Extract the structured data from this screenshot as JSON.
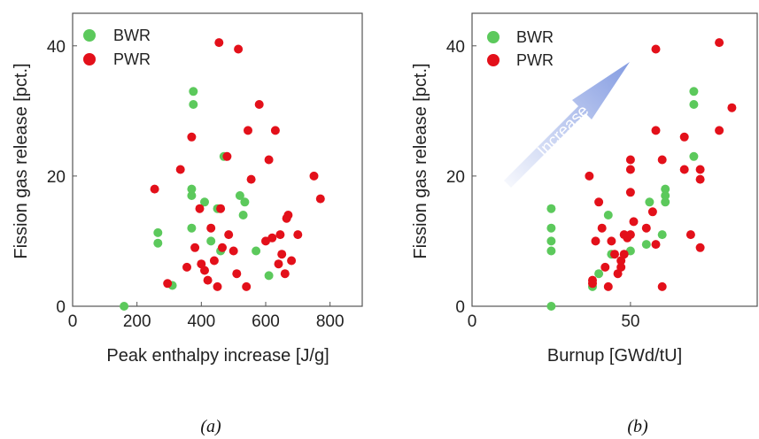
{
  "captions": [
    "(a)",
    "(b)"
  ],
  "colors": {
    "BWR": "#5cc95c",
    "PWR": "#e3101a",
    "arrow": "#7e97e0"
  },
  "chart_data": [
    {
      "type": "scatter",
      "title": "",
      "xlabel": "Peak enthalpy increase [J/g]",
      "ylabel": "Fission gas release [pct.]",
      "xlim": [
        0,
        900
      ],
      "ylim": [
        0,
        45
      ],
      "xticks": [
        0,
        200,
        400,
        600,
        800
      ],
      "yticks": [
        0,
        20,
        40
      ],
      "legend": "top-left",
      "series": [
        {
          "name": "BWR",
          "points": [
            [
              160,
              0
            ],
            [
              265,
              9.7
            ],
            [
              265,
              11.3
            ],
            [
              310,
              3.2
            ],
            [
              370,
              17
            ],
            [
              370,
              18
            ],
            [
              370,
              12
            ],
            [
              375,
              31
            ],
            [
              375,
              33
            ],
            [
              410,
              16
            ],
            [
              430,
              10
            ],
            [
              450,
              15
            ],
            [
              460,
              8.5
            ],
            [
              470,
              23
            ],
            [
              520,
              17
            ],
            [
              530,
              14
            ],
            [
              535,
              16
            ],
            [
              570,
              8.5
            ],
            [
              610,
              4.7
            ]
          ]
        },
        {
          "name": "PWR",
          "points": [
            [
              255,
              18
            ],
            [
              295,
              3.5
            ],
            [
              335,
              21
            ],
            [
              355,
              6
            ],
            [
              370,
              26
            ],
            [
              380,
              9
            ],
            [
              395,
              15
            ],
            [
              400,
              6.5
            ],
            [
              410,
              5.5
            ],
            [
              420,
              4
            ],
            [
              430,
              12
            ],
            [
              440,
              7
            ],
            [
              450,
              3
            ],
            [
              455,
              40.5
            ],
            [
              460,
              15
            ],
            [
              465,
              9
            ],
            [
              480,
              23
            ],
            [
              485,
              11
            ],
            [
              500,
              8.5
            ],
            [
              510,
              5
            ],
            [
              515,
              39.5
            ],
            [
              540,
              3
            ],
            [
              545,
              27
            ],
            [
              555,
              19.5
            ],
            [
              580,
              31
            ],
            [
              600,
              10
            ],
            [
              610,
              22.5
            ],
            [
              620,
              10.5
            ],
            [
              630,
              27
            ],
            [
              640,
              6.5
            ],
            [
              645,
              11
            ],
            [
              650,
              8
            ],
            [
              660,
              5
            ],
            [
              665,
              13.5
            ],
            [
              670,
              14
            ],
            [
              680,
              7
            ],
            [
              700,
              11
            ],
            [
              750,
              20
            ],
            [
              770,
              16.5
            ]
          ]
        }
      ]
    },
    {
      "type": "scatter",
      "title": "",
      "xlabel": "Burnup [GWd/tU]",
      "ylabel": "Fission gas release [pct.]",
      "xlim": [
        0,
        90
      ],
      "ylim": [
        0,
        45
      ],
      "xticks": [
        0,
        50
      ],
      "yticks": [
        0,
        20,
        40
      ],
      "legend": "top-left",
      "annotation": "Increase",
      "series": [
        {
          "name": "BWR",
          "points": [
            [
              25,
              0
            ],
            [
              25,
              8.5
            ],
            [
              25,
              10
            ],
            [
              25,
              12
            ],
            [
              25,
              15
            ],
            [
              38,
              3
            ],
            [
              40,
              5
            ],
            [
              43,
              14
            ],
            [
              44,
              8
            ],
            [
              50,
              8.5
            ],
            [
              55,
              9.5
            ],
            [
              56,
              16
            ],
            [
              60,
              11
            ],
            [
              61,
              16
            ],
            [
              61,
              17
            ],
            [
              61,
              18
            ],
            [
              70,
              23
            ],
            [
              70,
              31
            ],
            [
              70,
              33
            ]
          ]
        },
        {
          "name": "PWR",
          "points": [
            [
              37,
              20
            ],
            [
              38,
              4
            ],
            [
              38,
              3.5
            ],
            [
              39,
              10
            ],
            [
              40,
              16
            ],
            [
              41,
              12
            ],
            [
              42,
              6
            ],
            [
              43,
              3
            ],
            [
              44,
              10
            ],
            [
              45,
              8
            ],
            [
              46,
              5
            ],
            [
              47,
              6
            ],
            [
              47,
              7
            ],
            [
              48,
              11
            ],
            [
              48,
              8
            ],
            [
              49,
              10.5
            ],
            [
              50,
              11
            ],
            [
              50,
              17.5
            ],
            [
              50,
              21
            ],
            [
              50,
              22.5
            ],
            [
              51,
              13
            ],
            [
              55,
              12
            ],
            [
              57,
              14.5
            ],
            [
              58,
              9.5
            ],
            [
              58,
              27
            ],
            [
              58,
              39.5
            ],
            [
              60,
              22.5
            ],
            [
              60,
              3
            ],
            [
              67,
              21
            ],
            [
              67,
              26
            ],
            [
              69,
              11
            ],
            [
              72,
              9
            ],
            [
              72,
              19.5
            ],
            [
              72,
              21
            ],
            [
              78,
              27
            ],
            [
              78,
              40.5
            ],
            [
              82,
              30.5
            ]
          ]
        }
      ]
    }
  ]
}
